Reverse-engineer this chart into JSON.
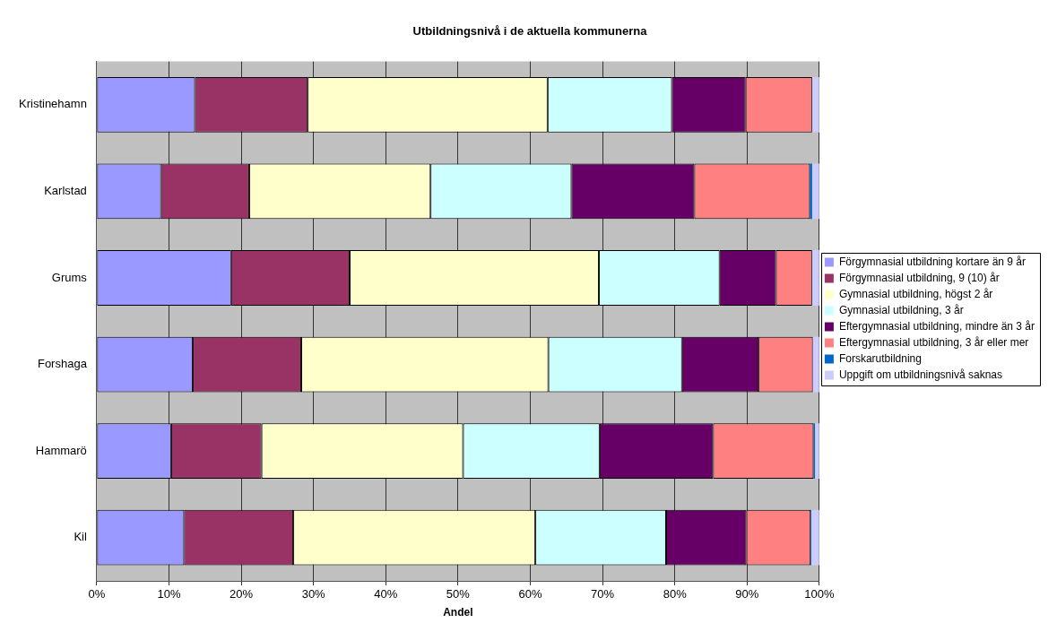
{
  "chart_data": {
    "type": "bar",
    "orientation": "horizontal",
    "stacked": true,
    "title": "Utbildningsnivå i de aktuella kommunerna",
    "xlabel": "Andel",
    "categories": [
      "Kristinehamn",
      "Karlstad",
      "Grums",
      "Forshaga",
      "Hammarö",
      "Kil"
    ],
    "series": [
      {
        "name": "Förgymnasial utbildning kortare än 9 år",
        "color": "#9999ff",
        "values": [
          13.6,
          8.9,
          18.6,
          13.3,
          10.3,
          12.1
        ]
      },
      {
        "name": "Förgymnasial utbildning, 9 (10) år",
        "color": "#993366",
        "values": [
          15.6,
          12.2,
          16.4,
          15.0,
          12.5,
          15.1
        ]
      },
      {
        "name": "Gymnasial utbildning, högst 2 år",
        "color": "#ffffcc",
        "values": [
          33.2,
          25.1,
          34.5,
          34.2,
          27.9,
          33.5
        ]
      },
      {
        "name": "Gymnasial utbildning, 3 år",
        "color": "#ccffff",
        "values": [
          17.2,
          19.5,
          16.7,
          18.5,
          18.9,
          18.1
        ]
      },
      {
        "name": "Eftergymnasial utbildning, mindre än 3 år",
        "color": "#660066",
        "values": [
          10.2,
          17.0,
          7.8,
          10.6,
          15.7,
          11.1
        ]
      },
      {
        "name": "Eftergymnasial utbildning, 3 år eller mer",
        "color": "#ff8080",
        "values": [
          9.2,
          16.0,
          5.0,
          7.5,
          13.9,
          8.9
        ]
      },
      {
        "name": "Forskarutbildning",
        "color": "#0066cc",
        "values": [
          0,
          0.3,
          0,
          0,
          0.2,
          0.1
        ]
      },
      {
        "name": "Uppgift om utbildningsnivå saknas",
        "color": "#ccccff",
        "values": [
          1.0,
          1.0,
          1.0,
          0.9,
          0.6,
          1.1
        ]
      }
    ],
    "xlim": [
      0,
      100
    ],
    "xticks": [
      {
        "value": 0,
        "label": "0%"
      },
      {
        "value": 10,
        "label": "10%"
      },
      {
        "value": 20,
        "label": "20%"
      },
      {
        "value": 30,
        "label": "30%"
      },
      {
        "value": 40,
        "label": "40%"
      },
      {
        "value": 50,
        "label": "50%"
      },
      {
        "value": 60,
        "label": "60%"
      },
      {
        "value": 70,
        "label": "70%"
      },
      {
        "value": 80,
        "label": "80%"
      },
      {
        "value": 90,
        "label": "90%"
      },
      {
        "value": 100,
        "label": "100%"
      }
    ],
    "grid": "x",
    "legend": "right"
  }
}
